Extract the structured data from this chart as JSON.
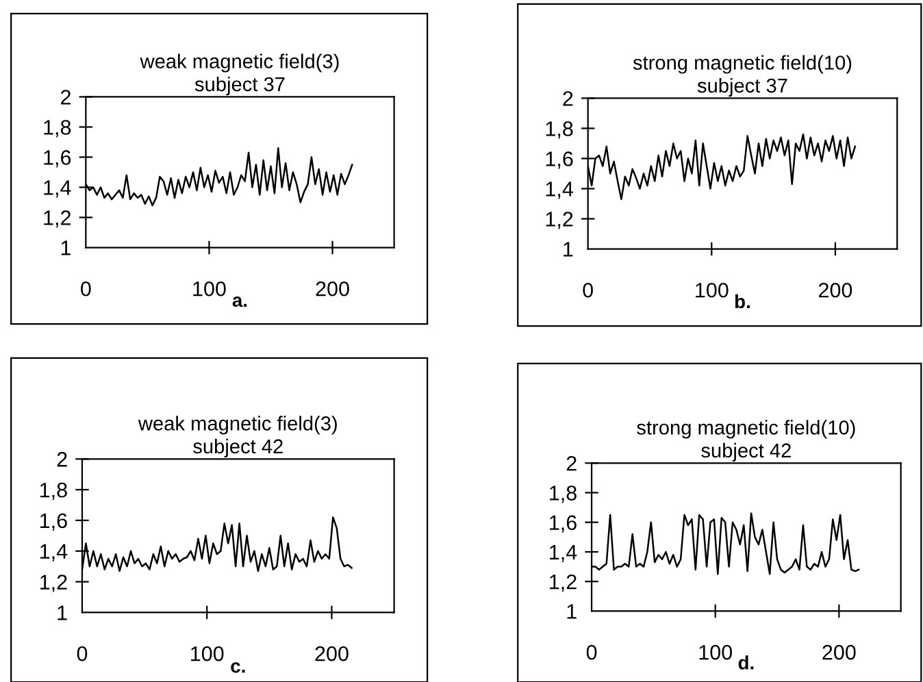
{
  "chart_data": [
    {
      "type": "line",
      "title": "weak magnetic field(3)\nsubject 37",
      "annotations": [
        "a."
      ],
      "xlim": [
        0,
        250
      ],
      "ylim": [
        1,
        2
      ],
      "xticks": [
        0,
        100,
        200
      ],
      "yticks": [
        1,
        {
          "value": 1.2,
          "label": "1,2"
        },
        {
          "value": 1.4,
          "label": "1,4"
        },
        {
          "value": 1.6,
          "label": "1,6"
        },
        {
          "value": 1.8,
          "label": "1,8"
        },
        2
      ],
      "grid": false,
      "legend": false,
      "marker": "none",
      "line_style": "solid",
      "series": [
        {
          "color": "#000000",
          "x": [
            0,
            3,
            6,
            9,
            12,
            15,
            18,
            21,
            24,
            27,
            30,
            33,
            36,
            39,
            42,
            45,
            48,
            51,
            54,
            57,
            60,
            63,
            66,
            69,
            72,
            75,
            78,
            81,
            84,
            87,
            90,
            93,
            96,
            99,
            102,
            105,
            108,
            111,
            114,
            117,
            120,
            123,
            126,
            129,
            132,
            135,
            138,
            141,
            144,
            147,
            150,
            153,
            156,
            159,
            162,
            165,
            168,
            171,
            174,
            177,
            180,
            183,
            186,
            189,
            192,
            195,
            198,
            201,
            204,
            207,
            210,
            213,
            216
          ],
          "values": [
            1.42,
            1.38,
            1.4,
            1.35,
            1.4,
            1.33,
            1.36,
            1.32,
            1.35,
            1.38,
            1.33,
            1.48,
            1.32,
            1.36,
            1.33,
            1.35,
            1.29,
            1.34,
            1.28,
            1.33,
            1.47,
            1.44,
            1.35,
            1.46,
            1.33,
            1.45,
            1.36,
            1.47,
            1.4,
            1.5,
            1.38,
            1.53,
            1.4,
            1.48,
            1.37,
            1.51,
            1.43,
            1.47,
            1.36,
            1.5,
            1.35,
            1.4,
            1.48,
            1.44,
            1.63,
            1.4,
            1.55,
            1.35,
            1.58,
            1.38,
            1.54,
            1.36,
            1.66,
            1.4,
            1.56,
            1.38,
            1.5,
            1.42,
            1.3,
            1.37,
            1.42,
            1.6,
            1.42,
            1.52,
            1.35,
            1.5,
            1.37,
            1.48,
            1.35,
            1.49,
            1.42,
            1.48,
            1.55
          ]
        }
      ]
    },
    {
      "type": "line",
      "title": "strong magnetic field(10)\nsubject 37",
      "annotations": [
        "b."
      ],
      "xlim": [
        0,
        250
      ],
      "ylim": [
        1,
        2
      ],
      "xticks": [
        0,
        100,
        200
      ],
      "yticks": [
        1,
        {
          "value": 1.2,
          "label": "1,2"
        },
        {
          "value": 1.4,
          "label": "1,4"
        },
        {
          "value": 1.6,
          "label": "1,6"
        },
        {
          "value": 1.8,
          "label": "1,8"
        },
        2
      ],
      "grid": false,
      "legend": false,
      "marker": "none",
      "line_style": "solid",
      "series": [
        {
          "color": "#000000",
          "x": [
            0,
            3,
            6,
            9,
            12,
            15,
            18,
            21,
            24,
            27,
            30,
            33,
            36,
            39,
            42,
            45,
            48,
            51,
            54,
            57,
            60,
            63,
            66,
            69,
            72,
            75,
            78,
            81,
            84,
            87,
            90,
            93,
            96,
            99,
            102,
            105,
            108,
            111,
            114,
            117,
            120,
            123,
            126,
            129,
            132,
            135,
            138,
            141,
            144,
            147,
            150,
            153,
            156,
            159,
            162,
            165,
            168,
            171,
            174,
            177,
            180,
            183,
            186,
            189,
            192,
            195,
            198,
            201,
            204,
            207,
            210,
            213,
            216
          ],
          "values": [
            1.55,
            1.42,
            1.6,
            1.62,
            1.55,
            1.68,
            1.5,
            1.58,
            1.45,
            1.33,
            1.48,
            1.42,
            1.53,
            1.47,
            1.4,
            1.5,
            1.42,
            1.55,
            1.45,
            1.62,
            1.48,
            1.65,
            1.55,
            1.7,
            1.6,
            1.65,
            1.45,
            1.6,
            1.5,
            1.72,
            1.42,
            1.7,
            1.55,
            1.4,
            1.57,
            1.45,
            1.55,
            1.42,
            1.52,
            1.45,
            1.55,
            1.48,
            1.52,
            1.75,
            1.62,
            1.5,
            1.7,
            1.55,
            1.73,
            1.6,
            1.72,
            1.65,
            1.74,
            1.62,
            1.72,
            1.43,
            1.7,
            1.65,
            1.76,
            1.6,
            1.74,
            1.62,
            1.7,
            1.58,
            1.72,
            1.65,
            1.75,
            1.6,
            1.72,
            1.55,
            1.74,
            1.6,
            1.68
          ]
        }
      ]
    },
    {
      "type": "line",
      "title": "weak magnetic field(3)\nsubject 42",
      "annotations": [
        "c."
      ],
      "xlim": [
        0,
        250
      ],
      "ylim": [
        1,
        2
      ],
      "xticks": [
        0,
        100,
        200
      ],
      "yticks": [
        1,
        {
          "value": 1.2,
          "label": "1,2"
        },
        {
          "value": 1.4,
          "label": "1,4"
        },
        {
          "value": 1.6,
          "label": "1,6"
        },
        {
          "value": 1.8,
          "label": "1,8"
        },
        2
      ],
      "grid": false,
      "legend": false,
      "marker": "none",
      "line_style": "solid",
      "series": [
        {
          "color": "#000000",
          "x": [
            0,
            3,
            6,
            9,
            12,
            15,
            18,
            21,
            24,
            27,
            30,
            33,
            36,
            39,
            42,
            45,
            48,
            51,
            54,
            57,
            60,
            63,
            66,
            69,
            72,
            75,
            78,
            81,
            84,
            87,
            90,
            93,
            96,
            99,
            102,
            105,
            108,
            111,
            114,
            117,
            120,
            123,
            126,
            129,
            132,
            135,
            138,
            141,
            144,
            147,
            150,
            153,
            156,
            159,
            162,
            165,
            168,
            171,
            174,
            177,
            180,
            183,
            186,
            189,
            192,
            195,
            198,
            201,
            204,
            207,
            210,
            213,
            216
          ],
          "values": [
            1.28,
            1.45,
            1.3,
            1.4,
            1.3,
            1.38,
            1.28,
            1.35,
            1.3,
            1.38,
            1.27,
            1.36,
            1.3,
            1.4,
            1.32,
            1.35,
            1.3,
            1.32,
            1.28,
            1.38,
            1.32,
            1.43,
            1.3,
            1.4,
            1.35,
            1.38,
            1.33,
            1.35,
            1.36,
            1.4,
            1.34,
            1.48,
            1.35,
            1.5,
            1.32,
            1.45,
            1.38,
            1.4,
            1.58,
            1.45,
            1.57,
            1.3,
            1.58,
            1.3,
            1.5,
            1.33,
            1.4,
            1.27,
            1.38,
            1.3,
            1.42,
            1.28,
            1.3,
            1.5,
            1.3,
            1.45,
            1.28,
            1.38,
            1.33,
            1.35,
            1.3,
            1.47,
            1.33,
            1.4,
            1.35,
            1.38,
            1.35,
            1.62,
            1.55,
            1.35,
            1.3,
            1.31,
            1.29
          ]
        }
      ]
    },
    {
      "type": "line",
      "title": "strong magnetic field(10)\nsubject 42",
      "annotations": [
        "d."
      ],
      "xlim": [
        0,
        250
      ],
      "ylim": [
        1,
        2
      ],
      "xticks": [
        0,
        100,
        200
      ],
      "yticks": [
        1,
        {
          "value": 1.2,
          "label": "1,2"
        },
        {
          "value": 1.4,
          "label": "1,4"
        },
        {
          "value": 1.6,
          "label": "1,6"
        },
        {
          "value": 1.8,
          "label": "1,8"
        },
        2
      ],
      "grid": false,
      "legend": false,
      "marker": "none",
      "line_style": "solid",
      "series": [
        {
          "color": "#000000",
          "x": [
            0,
            3,
            6,
            9,
            12,
            15,
            18,
            21,
            24,
            27,
            30,
            33,
            36,
            39,
            42,
            45,
            48,
            51,
            54,
            57,
            60,
            63,
            66,
            69,
            72,
            75,
            78,
            81,
            84,
            87,
            90,
            93,
            96,
            99,
            102,
            105,
            108,
            111,
            114,
            117,
            120,
            123,
            126,
            129,
            132,
            135,
            138,
            141,
            144,
            147,
            150,
            153,
            156,
            159,
            162,
            165,
            168,
            171,
            174,
            177,
            180,
            183,
            186,
            189,
            192,
            195,
            198,
            201,
            204,
            207,
            210,
            213,
            216
          ],
          "values": [
            1.3,
            1.3,
            1.28,
            1.3,
            1.32,
            1.65,
            1.28,
            1.3,
            1.3,
            1.32,
            1.3,
            1.52,
            1.3,
            1.32,
            1.3,
            1.4,
            1.6,
            1.33,
            1.38,
            1.35,
            1.4,
            1.32,
            1.38,
            1.3,
            1.35,
            1.65,
            1.58,
            1.62,
            1.28,
            1.65,
            1.62,
            1.3,
            1.6,
            1.62,
            1.25,
            1.63,
            1.6,
            1.3,
            1.6,
            1.55,
            1.45,
            1.58,
            1.27,
            1.66,
            1.5,
            1.45,
            1.55,
            1.4,
            1.25,
            1.6,
            1.35,
            1.28,
            1.26,
            1.28,
            1.3,
            1.35,
            1.28,
            1.58,
            1.3,
            1.28,
            1.32,
            1.3,
            1.4,
            1.3,
            1.35,
            1.62,
            1.48,
            1.65,
            1.35,
            1.48,
            1.28,
            1.27,
            1.28
          ]
        }
      ]
    }
  ]
}
